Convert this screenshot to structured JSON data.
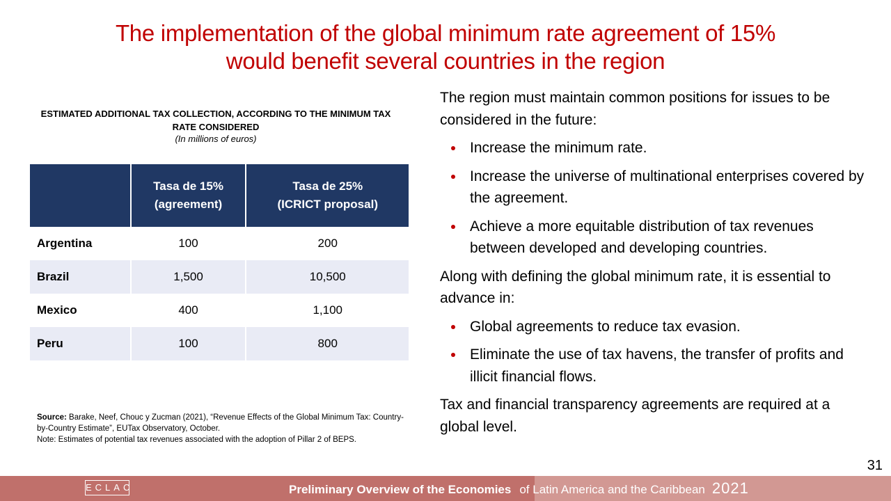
{
  "header": {
    "title_lines": [
      "The implementation of the global minimum rate agreement of 15%",
      "would benefit several countries in the region"
    ]
  },
  "table": {
    "caption": "ESTIMATED ADDITIONAL TAX COLLECTION, ACCORDING TO THE MINIMUM TAX RATE CONSIDERED",
    "unit_note": "(In millions of euros)",
    "columns": [
      [
        "Tasa de 15%",
        "(agreement)"
      ],
      [
        "Tasa de 25%",
        "(ICRICT proposal)"
      ]
    ],
    "rows": [
      [
        "Argentina",
        "100",
        "200"
      ],
      [
        "Brazil",
        "1,500",
        "10,500"
      ],
      [
        "Mexico",
        "400",
        "1,100"
      ],
      [
        "Peru",
        "100",
        "800"
      ]
    ]
  },
  "source": {
    "label": "Source:",
    "text": "Barake, Neef, Chouc y Zucman (2021), “Revenue Effects of the Global Minimum Tax: Country-by-Country Estimate”, EUTax Observatory, October.",
    "note": "Note: Estimates of potential tax revenues associated with the adoption of Pillar 2 of BEPS."
  },
  "body": {
    "intro": "The region must maintain common positions for issues to be considered in the future:",
    "bullets1": [
      "Increase the minimum rate.",
      "Increase the universe of multinational enterprises covered by the agreement.",
      "Achieve a more equitable distribution of tax revenues between developed and developing countries."
    ],
    "para2": "Along with defining the global minimum rate, it is essential to advance in:",
    "bullets2": [
      "Global agreements to reduce tax evasion.",
      "Eliminate the use of tax havens, the transfer of profits and illicit financial flows."
    ],
    "closing": "Tax and financial transparency agreements are required at a global level."
  },
  "page_number": "31",
  "footer": {
    "logo": "ECLAC",
    "title_bold": "Preliminary Overview of the Economies",
    "title_rest": "of Latin America and the Caribbean",
    "year": "2021"
  }
}
